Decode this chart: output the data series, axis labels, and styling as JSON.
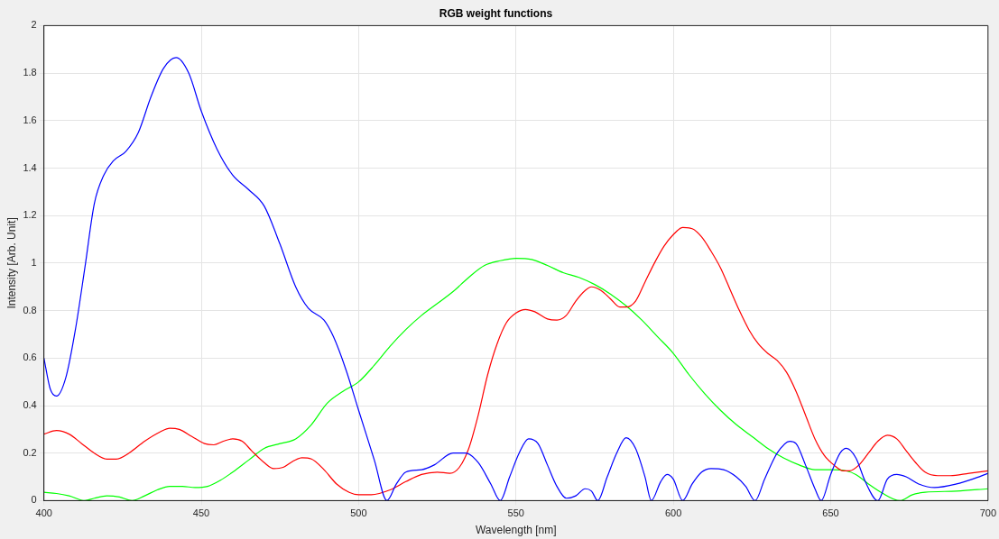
{
  "chart_data": {
    "type": "line",
    "title": "RGB weight functions",
    "xlabel": "Wavelength [nm]",
    "ylabel": "Intensity [Arb. Unit]",
    "xlim": [
      400,
      700
    ],
    "ylim": [
      0,
      2
    ],
    "xticks": [
      400,
      450,
      500,
      550,
      600,
      650,
      700
    ],
    "yticks": [
      0,
      0.2,
      0.4,
      0.6,
      0.8,
      1,
      1.2,
      1.4,
      1.6,
      1.8,
      2
    ],
    "grid": true,
    "legend": false,
    "marker": "none",
    "line_style": "solid",
    "series": [
      {
        "color": "#0000ff",
        "x": [
          400,
          402,
          404,
          407,
          410,
          413,
          416,
          419,
          422,
          426,
          430,
          434,
          438,
          442,
          446,
          450,
          455,
          460,
          465,
          470,
          475,
          480,
          484,
          489,
          492,
          496,
          500,
          505,
          509,
          512,
          515,
          520,
          524,
          530,
          534,
          538,
          542,
          545,
          548,
          551,
          554,
          557,
          560,
          563,
          566,
          569,
          572,
          574,
          576,
          579,
          582,
          585,
          588,
          591,
          593,
          596,
          598,
          600,
          603,
          606,
          609,
          612,
          616,
          620,
          623,
          626,
          629,
          633,
          637,
          639,
          642,
          645,
          647,
          650,
          653,
          655,
          658,
          661,
          665,
          668,
          671,
          674,
          678,
          683,
          690,
          695,
          700
        ],
        "values": [
          0.6,
          0.47,
          0.44,
          0.52,
          0.72,
          0.98,
          1.25,
          1.37,
          1.43,
          1.47,
          1.55,
          1.7,
          1.82,
          1.865,
          1.8,
          1.64,
          1.48,
          1.37,
          1.31,
          1.24,
          1.08,
          0.9,
          0.81,
          0.76,
          0.69,
          0.55,
          0.38,
          0.17,
          0,
          0.07,
          0.12,
          0.13,
          0.15,
          0.2,
          0.2,
          0.16,
          0.07,
          0,
          0.1,
          0.2,
          0.26,
          0.24,
          0.15,
          0.06,
          0.01,
          0.02,
          0.05,
          0.04,
          0,
          0.1,
          0.2,
          0.265,
          0.22,
          0.1,
          0,
          0.08,
          0.11,
          0.09,
          0,
          0.07,
          0.12,
          0.135,
          0.13,
          0.1,
          0.06,
          0,
          0.09,
          0.2,
          0.25,
          0.24,
          0.15,
          0.05,
          0,
          0.11,
          0.2,
          0.22,
          0.18,
          0.08,
          0,
          0.09,
          0.11,
          0.1,
          0.07,
          0.055,
          0.07,
          0.09,
          0.115
        ]
      },
      {
        "color": "#ff0000",
        "x": [
          400,
          404,
          408,
          412,
          416,
          420,
          423,
          427,
          432,
          437,
          440,
          443,
          447,
          451,
          454,
          457,
          460,
          463,
          466,
          470,
          473,
          476,
          479,
          482,
          485,
          489,
          493,
          497,
          500,
          504,
          510,
          515,
          520,
          525,
          529,
          532,
          535,
          538,
          541,
          544,
          547,
          550,
          553,
          556,
          560,
          563,
          566,
          569,
          572,
          574,
          577,
          580,
          583,
          585,
          588,
          591,
          594,
          597,
          600,
          603,
          606,
          609,
          612,
          615,
          618,
          621,
          624,
          627,
          630,
          633,
          636,
          639,
          642,
          645,
          648,
          651,
          654,
          656,
          659,
          662,
          665,
          668,
          671,
          674,
          677,
          680,
          684,
          688,
          694,
          700
        ],
        "values": [
          0.28,
          0.295,
          0.28,
          0.24,
          0.2,
          0.175,
          0.175,
          0.2,
          0.25,
          0.29,
          0.305,
          0.3,
          0.27,
          0.24,
          0.235,
          0.25,
          0.26,
          0.25,
          0.21,
          0.16,
          0.135,
          0.14,
          0.165,
          0.18,
          0.175,
          0.13,
          0.07,
          0.035,
          0.025,
          0.025,
          0.045,
          0.08,
          0.11,
          0.12,
          0.115,
          0.14,
          0.22,
          0.36,
          0.53,
          0.66,
          0.75,
          0.79,
          0.805,
          0.795,
          0.765,
          0.76,
          0.78,
          0.84,
          0.885,
          0.9,
          0.885,
          0.85,
          0.815,
          0.815,
          0.84,
          0.92,
          1,
          1.07,
          1.12,
          1.15,
          1.145,
          1.11,
          1.05,
          0.98,
          0.89,
          0.8,
          0.72,
          0.66,
          0.62,
          0.59,
          0.54,
          0.46,
          0.36,
          0.26,
          0.19,
          0.15,
          0.125,
          0.125,
          0.15,
          0.2,
          0.25,
          0.275,
          0.26,
          0.21,
          0.16,
          0.12,
          0.105,
          0.105,
          0.115,
          0.125
        ]
      },
      {
        "color": "#00ff00",
        "x": [
          400,
          404,
          408,
          413,
          416,
          420,
          424,
          428,
          432,
          436,
          440,
          444,
          448,
          452,
          456,
          460,
          465,
          470,
          475,
          480,
          485,
          490,
          495,
          500,
          505,
          510,
          515,
          520,
          525,
          530,
          535,
          540,
          545,
          550,
          555,
          560,
          565,
          570,
          575,
          580,
          585,
          590,
          595,
          600,
          605,
          610,
          615,
          620,
          625,
          630,
          635,
          640,
          645,
          650,
          655,
          658,
          662,
          666,
          672,
          676,
          680,
          690,
          700
        ],
        "values": [
          0.035,
          0.03,
          0.02,
          0,
          0.01,
          0.02,
          0.015,
          0,
          0.02,
          0.045,
          0.06,
          0.06,
          0.055,
          0.06,
          0.085,
          0.12,
          0.17,
          0.22,
          0.24,
          0.26,
          0.32,
          0.41,
          0.46,
          0.5,
          0.57,
          0.65,
          0.72,
          0.78,
          0.83,
          0.88,
          0.94,
          0.99,
          1.01,
          1.02,
          1.015,
          0.99,
          0.96,
          0.94,
          0.91,
          0.87,
          0.82,
          0.76,
          0.69,
          0.62,
          0.53,
          0.45,
          0.38,
          0.32,
          0.27,
          0.22,
          0.18,
          0.15,
          0.13,
          0.13,
          0.125,
          0.11,
          0.07,
          0.035,
          0,
          0.025,
          0.035,
          0.04,
          0.05
        ]
      }
    ]
  }
}
